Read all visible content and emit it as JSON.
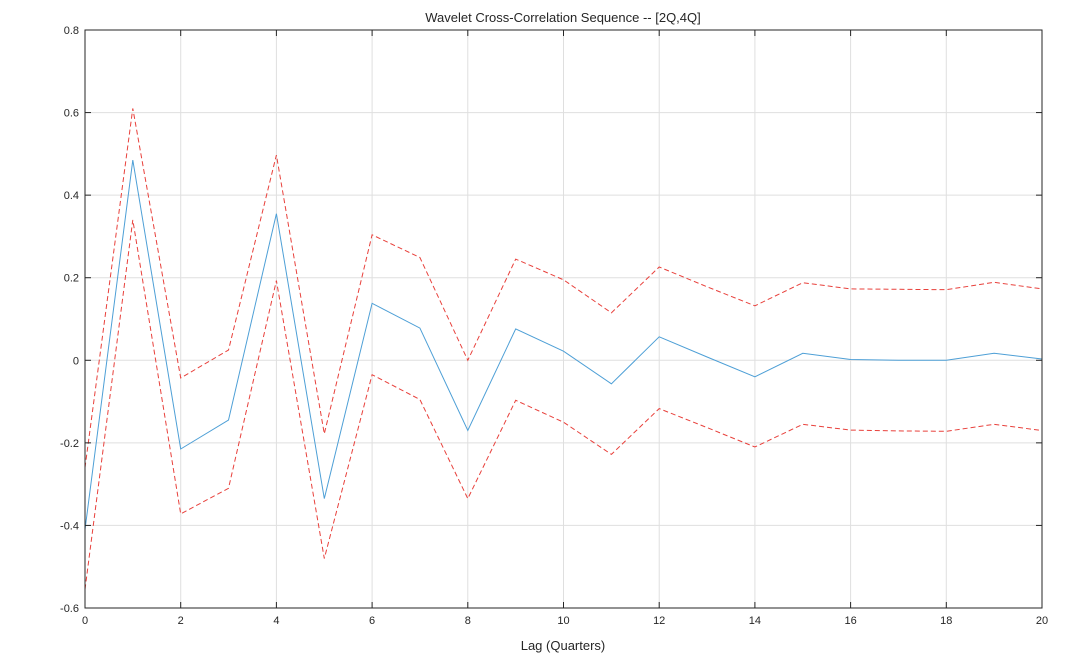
{
  "chart_data": {
    "type": "line",
    "title": "Wavelet Cross-Correlation Sequence -- [2Q,4Q]",
    "xlabel": "Lag (Quarters)",
    "ylabel": "",
    "xlim": [
      0,
      20
    ],
    "ylim": [
      -0.6,
      0.8
    ],
    "xticks": [
      "0",
      "2",
      "4",
      "6",
      "8",
      "10",
      "12",
      "14",
      "16",
      "18",
      "20"
    ],
    "yticks": [
      "-0.6",
      "-0.4",
      "-0.2",
      "0",
      "0.2",
      "0.4",
      "0.6",
      "0.8"
    ],
    "grid": true,
    "x": [
      0,
      1,
      2,
      3,
      4,
      5,
      6,
      7,
      8,
      9,
      10,
      11,
      12,
      13,
      14,
      15,
      16,
      17,
      18,
      19,
      20
    ],
    "series": [
      {
        "values": [
          -0.41,
          0.485,
          -0.215,
          -0.145,
          0.355,
          -0.335,
          0.138,
          0.078,
          -0.17,
          0.076,
          0.022,
          -0.057,
          0.057,
          0.008,
          -0.04,
          0.017,
          0.002,
          0.0,
          0.0,
          0.017,
          0.003
        ],
        "color": "#4d9fd6",
        "style": "solid"
      },
      {
        "values": [
          -0.26,
          0.61,
          -0.043,
          0.025,
          0.497,
          -0.178,
          0.304,
          0.249,
          0.0,
          0.245,
          0.195,
          0.115,
          0.226,
          0.178,
          0.132,
          0.188,
          0.173,
          0.172,
          0.171,
          0.189,
          0.173
        ],
        "color": "#e8403b",
        "style": "dashed"
      },
      {
        "values": [
          -0.555,
          0.34,
          -0.372,
          -0.31,
          0.193,
          -0.48,
          -0.035,
          -0.095,
          -0.335,
          -0.097,
          -0.15,
          -0.228,
          -0.117,
          -0.163,
          -0.21,
          -0.155,
          -0.169,
          -0.171,
          -0.172,
          -0.155,
          -0.17
        ],
        "color": "#e8403b",
        "style": "dashed"
      }
    ]
  }
}
